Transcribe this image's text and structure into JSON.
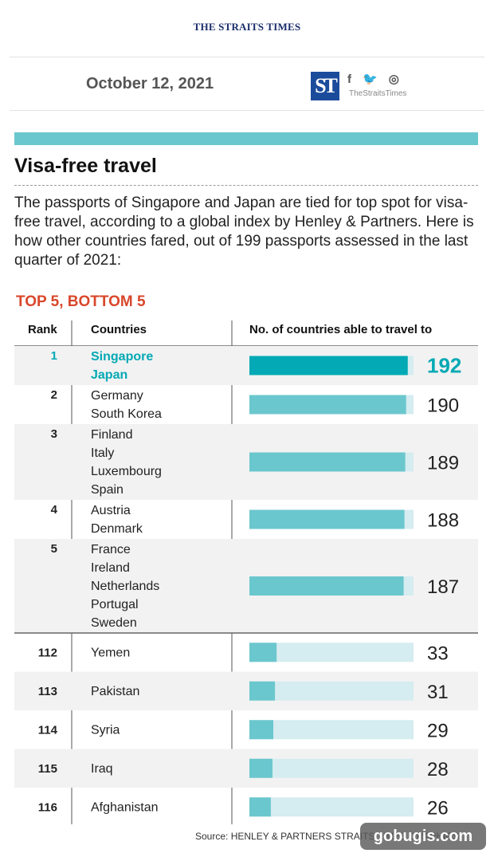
{
  "header": {
    "masthead": "THE STRAITS TIMES",
    "date": "October 12, 2021",
    "logo_text": "ST",
    "social": [
      "f",
      "🐦",
      "◎"
    ],
    "handle": "TheStraitsTimes"
  },
  "article": {
    "title": "Visa-free travel",
    "description": "The passports of Singapore and Japan are tied for top spot for visa-free travel, according to a global index by Henley & Partners. Here is how other countries fared, out of 199 passports assessed in the last quarter of 2021:",
    "subheading": "TOP 5, BOTTOM 5"
  },
  "colors": {
    "accent": "#6bc7ce",
    "highlight": "#03a9b4",
    "bar_track": "#d5ecf0",
    "subheading": "#d9472b"
  },
  "chart_data": {
    "type": "bar",
    "orientation": "horizontal",
    "columns": [
      "Rank",
      "Countries",
      "No. of countries able to travel to"
    ],
    "max": 199,
    "rows": [
      {
        "rank": "1",
        "countries": [
          "Singapore",
          "Japan"
        ],
        "value": 192,
        "highlight": true
      },
      {
        "rank": "2",
        "countries": [
          "Germany",
          "South Korea"
        ],
        "value": 190
      },
      {
        "rank": "3",
        "countries": [
          "Finland",
          "Italy",
          "Luxembourg",
          "Spain"
        ],
        "value": 189
      },
      {
        "rank": "4",
        "countries": [
          "Austria",
          "Denmark"
        ],
        "value": 188
      },
      {
        "rank": "5",
        "countries": [
          "France",
          "Ireland",
          "Netherlands",
          "Portugal",
          "Sweden"
        ],
        "value": 187
      },
      {
        "rank": "112",
        "countries": [
          "Yemen"
        ],
        "value": 33
      },
      {
        "rank": "113",
        "countries": [
          "Pakistan"
        ],
        "value": 31
      },
      {
        "rank": "114",
        "countries": [
          "Syria"
        ],
        "value": 29
      },
      {
        "rank": "115",
        "countries": [
          "Iraq"
        ],
        "value": 28
      },
      {
        "rank": "116",
        "countries": [
          "Afghanistan"
        ],
        "value": 26
      }
    ]
  },
  "footer": {
    "source": "Source: HENLEY & PARTNERS   STRAITS TIMES GRAPHICS",
    "watermark": "gobugis.com"
  }
}
